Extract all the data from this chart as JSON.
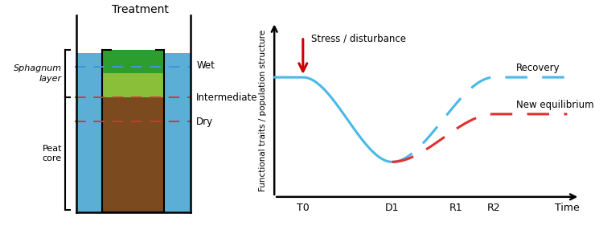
{
  "title_left": "Treatment",
  "label_sphagnum": "Sphagnum\nlayer",
  "label_peat": "Peat\ncore",
  "label_wet": "Wet",
  "label_intermediate": "Intermediate",
  "label_dry": "Dry",
  "color_water": "#5bafd6",
  "color_peat": "#7b4a1e",
  "color_sphagnum_top": "#2d9e2d",
  "color_sphagnum_bottom": "#8abf3a",
  "color_wet_line": "#4a90d9",
  "color_red_line": "#e03030",
  "ylabel_right": "Functional traits / population structure",
  "xlabel_right": "Time",
  "stress_label": "Stress / disturbance",
  "recovery_label": "Recovery",
  "new_eq_label": "New equilibrium",
  "tick_labels": [
    "T0",
    "D1",
    "R1",
    "R2",
    "Time"
  ],
  "color_blue_curve": "#4ab8e8",
  "color_red_dashed": "#e03030",
  "background": "#ffffff"
}
